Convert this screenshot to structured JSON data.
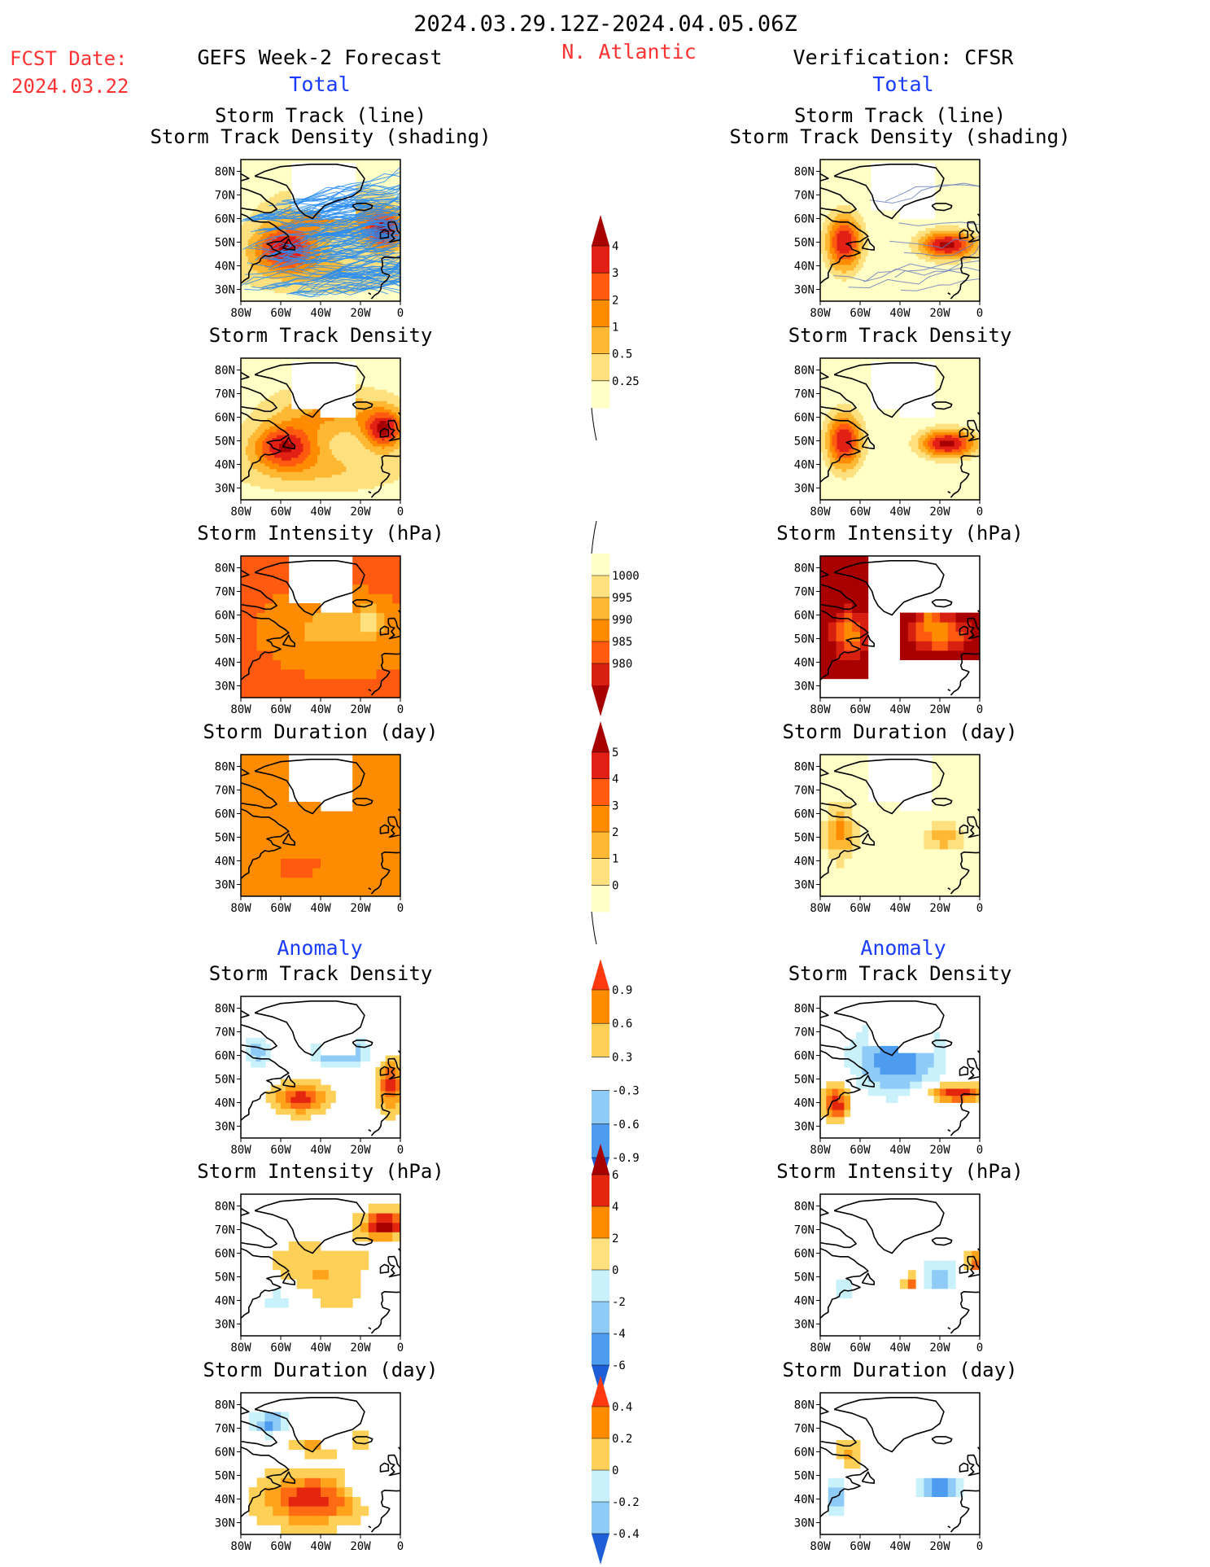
{
  "header": {
    "period": "2024.03.29.12Z-2024.04.05.06Z",
    "fcst_label": "FCST Date:",
    "fcst_date": "2024.03.22",
    "left_title": "GEFS Week-2 Forecast",
    "region": "N. Atlantic",
    "right_title": "Verification: CFSR",
    "total_label": "Total",
    "anomaly_label": "Anomaly"
  },
  "axes": {
    "x_ticks": [
      "80W",
      "60W",
      "40W",
      "20W",
      "0"
    ],
    "y_ticks": [
      "80N",
      "70N",
      "60N",
      "50N",
      "40N",
      "30N"
    ]
  },
  "colorbars": [
    {
      "labels": [
        "4",
        "3",
        "2",
        "1",
        "0.5",
        "0.25"
      ]
    },
    {
      "labels": [
        "1000",
        "995",
        "990",
        "985",
        "980"
      ]
    },
    {
      "labels": [
        "5",
        "4",
        "3",
        "2",
        "1",
        "0"
      ]
    },
    {
      "labels": [
        "0.9",
        "0.6",
        "0.3",
        "-0.3",
        "-0.6",
        "-0.9"
      ]
    },
    {
      "labels": [
        "6",
        "4",
        "2",
        "0",
        "-2",
        "-4",
        "-6"
      ]
    },
    {
      "labels": [
        "0.4",
        "0.2",
        "0",
        "-0.2",
        "-0.4"
      ]
    }
  ],
  "colors": {
    "title_red": "#ff3333",
    "title_blue": "#1a3cff"
  },
  "chart_data": [
    {
      "type": "heatmap",
      "panel": "forecast-total",
      "titles": [
        "Storm Track (line)",
        "Storm Track Density (shading)"
      ]
    },
    {
      "type": "heatmap",
      "panel": "forecast-total",
      "titles": [
        "Storm Track Density"
      ]
    },
    {
      "type": "heatmap",
      "panel": "forecast-total",
      "titles": [
        "Storm Intensity (hPa)"
      ]
    },
    {
      "type": "heatmap",
      "panel": "forecast-total",
      "titles": [
        "Storm Duration (day)"
      ]
    },
    {
      "type": "heatmap",
      "panel": "forecast-anomaly",
      "titles": [
        "Storm Track Density"
      ]
    },
    {
      "type": "heatmap",
      "panel": "forecast-anomaly",
      "titles": [
        "Storm Intensity (hPa)"
      ]
    },
    {
      "type": "heatmap",
      "panel": "forecast-anomaly",
      "titles": [
        "Storm Duration (day)"
      ]
    },
    {
      "type": "heatmap",
      "panel": "verification-total",
      "titles": [
        "Storm Track (line)",
        "Storm Track Density (shading)"
      ]
    },
    {
      "type": "heatmap",
      "panel": "verification-total",
      "titles": [
        "Storm Track Density"
      ]
    },
    {
      "type": "heatmap",
      "panel": "verification-total",
      "titles": [
        "Storm Intensity (hPa)"
      ]
    },
    {
      "type": "heatmap",
      "panel": "verification-total",
      "titles": [
        "Storm Duration (day)"
      ]
    },
    {
      "type": "heatmap",
      "panel": "verification-anomaly",
      "titles": [
        "Storm Track Density"
      ]
    },
    {
      "type": "heatmap",
      "panel": "verification-anomaly",
      "titles": [
        "Storm Intensity (hPa)"
      ]
    },
    {
      "type": "heatmap",
      "panel": "verification-anomaly",
      "titles": [
        "Storm Duration (day)"
      ]
    }
  ]
}
